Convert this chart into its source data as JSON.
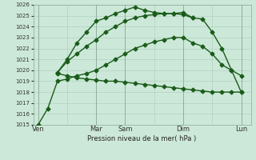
{
  "title": "Pression niveau de la mer( hPa )",
  "background_color": "#cce8d8",
  "grid_color": "#aaccbb",
  "line_color": "#1a5c1a",
  "ylim": [
    1015,
    1026
  ],
  "yticks": [
    1015,
    1016,
    1017,
    1018,
    1019,
    1020,
    1021,
    1022,
    1023,
    1024,
    1025,
    1026
  ],
  "day_labels": [
    "Ven",
    "",
    "Mar",
    "Sam",
    "",
    "Dim",
    "",
    "Lun"
  ],
  "day_positions": [
    0,
    3,
    6,
    9,
    12,
    15,
    18,
    21
  ],
  "vline_positions": [
    0,
    6,
    9,
    15,
    21
  ],
  "lines": [
    {
      "x": [
        2,
        3,
        4,
        5,
        6,
        7,
        8,
        9,
        10,
        11,
        12,
        13,
        14,
        15,
        16,
        17,
        18,
        19,
        20,
        21
      ],
      "y": [
        1019.7,
        1019.5,
        1019.3,
        1019.2,
        1019.1,
        1019.0,
        1019.0,
        1018.9,
        1018.8,
        1018.7,
        1018.6,
        1018.5,
        1018.4,
        1018.3,
        1018.2,
        1018.1,
        1018.0,
        1018.0,
        1018.0,
        1018.0
      ],
      "marker": "D",
      "markersize": 2.5,
      "linewidth": 1.0
    },
    {
      "x": [
        0,
        1,
        2,
        3,
        4,
        5,
        6,
        7,
        8,
        9,
        10,
        11,
        12,
        13,
        14,
        15,
        16,
        17,
        18,
        19,
        20,
        21
      ],
      "y": [
        1015.0,
        1016.5,
        1019.0,
        1019.2,
        1019.5,
        1019.7,
        1020.0,
        1020.5,
        1021.0,
        1021.5,
        1022.0,
        1022.3,
        1022.6,
        1022.8,
        1023.0,
        1023.0,
        1022.5,
        1022.2,
        1021.5,
        1020.5,
        1020.0,
        1018.0
      ],
      "marker": "D",
      "markersize": 2.5,
      "linewidth": 1.0
    },
    {
      "x": [
        2,
        3,
        4,
        5,
        6,
        7,
        8,
        9,
        10,
        11,
        12,
        13,
        14,
        15,
        16,
        17,
        18,
        19,
        20,
        21
      ],
      "y": [
        1019.8,
        1020.8,
        1021.5,
        1022.2,
        1022.8,
        1023.5,
        1024.0,
        1024.5,
        1024.8,
        1025.0,
        1025.1,
        1025.2,
        1025.2,
        1025.1,
        1024.8,
        1024.7,
        1023.5,
        1022.0,
        1020.0,
        1019.5
      ],
      "marker": "D",
      "markersize": 2.5,
      "linewidth": 1.0
    },
    {
      "x": [
        2,
        3,
        4,
        5,
        6,
        7,
        8,
        9,
        10,
        11,
        12,
        13,
        14,
        15,
        16
      ],
      "y": [
        1019.8,
        1021.0,
        1022.5,
        1023.5,
        1024.5,
        1024.8,
        1025.2,
        1025.5,
        1025.8,
        1025.5,
        1025.3,
        1025.2,
        1025.2,
        1025.3,
        1024.8
      ],
      "marker": "D",
      "markersize": 2.5,
      "linewidth": 1.0
    }
  ]
}
